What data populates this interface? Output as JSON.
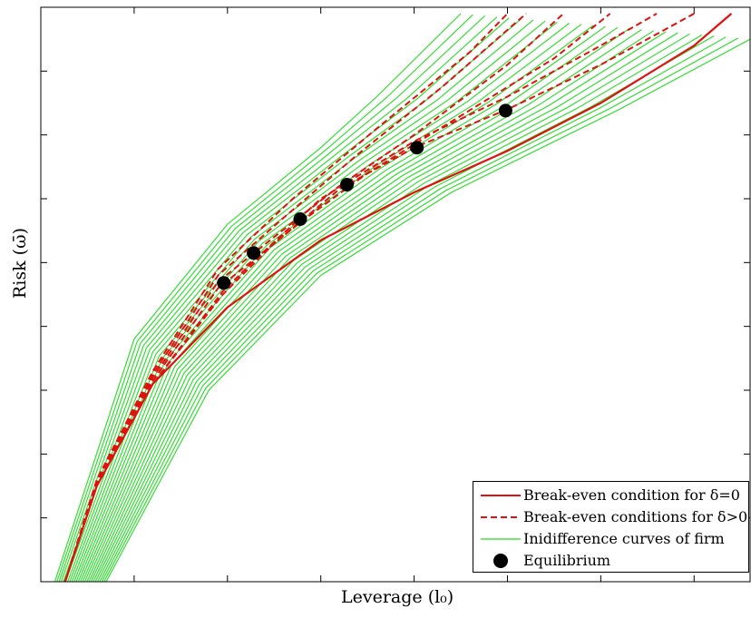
{
  "chart_data": {
    "type": "line",
    "xlabel": "Leverage (l₀)",
    "ylabel": "Risk (ω̄)",
    "xlim": [
      0,
      7.6
    ],
    "ylim": [
      0,
      9
    ],
    "x_ticks": [
      1,
      2,
      3,
      4,
      5,
      6,
      7
    ],
    "y_ticks": [
      1,
      2,
      3,
      4,
      5,
      6,
      7,
      8
    ],
    "grid": false,
    "legend_position": "bottom-right",
    "legend": [
      {
        "label": "Break-even condition for  δ=0",
        "style": "solid",
        "color": "#e0110e"
      },
      {
        "label": "Break-even conditions for  δ>0",
        "style": "dashed",
        "color": "#e0110e"
      },
      {
        "label": "Inidifference curves of firm",
        "style": "solid",
        "color": "#22dd22"
      },
      {
        "label": "Equilibrium",
        "style": "marker",
        "color": "#000000"
      }
    ],
    "colors": {
      "break_even": "#e0110e",
      "indifference": "#22dd22",
      "equilibrium": "#000000"
    },
    "series": [
      {
        "name": "Break-even condition for  δ=0",
        "style": "solid",
        "points": [
          [
            0.26,
            0.0
          ],
          [
            0.6,
            1.5
          ],
          [
            1.2,
            3.1
          ],
          [
            2.0,
            4.3
          ],
          [
            3.0,
            5.35
          ],
          [
            4.0,
            6.1
          ],
          [
            5.0,
            6.75
          ],
          [
            6.0,
            7.5
          ],
          [
            7.0,
            8.4
          ],
          [
            7.4,
            8.9
          ]
        ]
      },
      {
        "name": "Break-even conditions for  δ>0",
        "style": "dashed",
        "members": [
          [
            [
              0.26,
              0.0
            ],
            [
              0.6,
              1.5
            ],
            [
              1.2,
              3.1
            ],
            [
              1.95,
              4.5
            ],
            [
              2.5,
              5.3
            ],
            [
              3.2,
              6.15
            ],
            [
              4.0,
              6.8
            ],
            [
              5.0,
              7.4
            ],
            [
              6.0,
              8.1
            ],
            [
              7.0,
              8.9
            ]
          ],
          [
            [
              0.26,
              0.0
            ],
            [
              0.6,
              1.5
            ],
            [
              1.2,
              3.1
            ],
            [
              1.95,
              4.55
            ],
            [
              2.3,
              5.05
            ],
            [
              3.0,
              6.0
            ],
            [
              4.0,
              6.9
            ],
            [
              5.0,
              7.6
            ],
            [
              6.0,
              8.4
            ],
            [
              6.6,
              8.9
            ]
          ],
          [
            [
              0.26,
              0.0
            ],
            [
              0.6,
              1.5
            ],
            [
              1.2,
              3.15
            ],
            [
              1.9,
              4.6
            ],
            [
              2.8,
              5.65
            ],
            [
              3.5,
              6.4
            ],
            [
              4.5,
              7.3
            ],
            [
              5.5,
              8.2
            ],
            [
              6.1,
              8.9
            ]
          ],
          [
            [
              0.26,
              0.0
            ],
            [
              0.6,
              1.5
            ],
            [
              1.2,
              3.2
            ],
            [
              1.9,
              4.7
            ],
            [
              2.5,
              5.4
            ],
            [
              3.2,
              6.2
            ],
            [
              4.0,
              7.0
            ],
            [
              5.0,
              8.1
            ],
            [
              5.6,
              8.9
            ]
          ],
          [
            [
              0.26,
              0.0
            ],
            [
              0.6,
              1.55
            ],
            [
              1.2,
              3.25
            ],
            [
              1.9,
              4.8
            ],
            [
              2.6,
              5.7
            ],
            [
              3.4,
              6.7
            ],
            [
              4.3,
              7.75
            ],
            [
              5.2,
              8.9
            ]
          ],
          [
            [
              0.26,
              0.0
            ],
            [
              0.6,
              1.6
            ],
            [
              1.2,
              3.3
            ],
            [
              1.9,
              4.9
            ],
            [
              2.7,
              6.0
            ],
            [
              3.6,
              7.1
            ],
            [
              4.6,
              8.3
            ],
            [
              5.0,
              8.9
            ]
          ]
        ]
      },
      {
        "name": "Inidifference curves of firm",
        "style": "solid",
        "count": 25,
        "pivot_first": [
          [
            0.15,
            0.0
          ],
          [
            1.0,
            3.8
          ],
          [
            2.0,
            5.6
          ],
          [
            3.0,
            6.8
          ],
          [
            3.6,
            7.6
          ],
          [
            4.5,
            8.9
          ]
        ],
        "pivot_last": [
          [
            0.7,
            0.0
          ],
          [
            1.8,
            3.0
          ],
          [
            3.0,
            4.8
          ],
          [
            4.4,
            6.1
          ],
          [
            6.2,
            7.4
          ],
          [
            7.6,
            8.5
          ]
        ]
      },
      {
        "name": "Equilibrium",
        "style": "marker",
        "points": [
          [
            1.96,
            4.68
          ],
          [
            2.28,
            5.15
          ],
          [
            2.78,
            5.68
          ],
          [
            3.28,
            6.22
          ],
          [
            4.03,
            6.8
          ],
          [
            4.98,
            7.38
          ]
        ]
      }
    ]
  }
}
